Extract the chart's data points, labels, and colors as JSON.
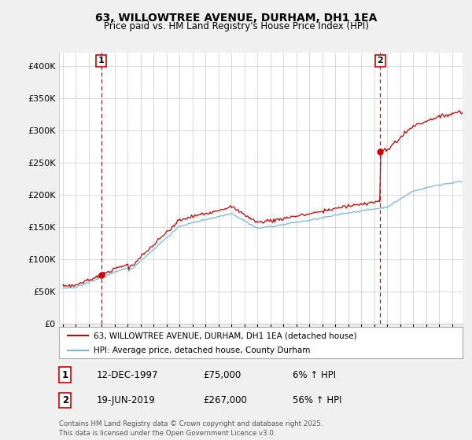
{
  "title": "63, WILLOWTREE AVENUE, DURHAM, DH1 1EA",
  "subtitle": "Price paid vs. HM Land Registry's House Price Index (HPI)",
  "sale1_price": 75000,
  "sale1_label": "1",
  "sale1_pct": "6% ↑ HPI",
  "sale1_date_str": "12-DEC-1997",
  "sale1_t": 1997.958,
  "sale2_price": 267000,
  "sale2_label": "2",
  "sale2_pct": "56% ↑ HPI",
  "sale2_date_str": "19-JUN-2019",
  "sale2_t": 2019.458,
  "legend_line1": "63, WILLOWTREE AVENUE, DURHAM, DH1 1EA (detached house)",
  "legend_line2": "HPI: Average price, detached house, County Durham",
  "footnote": "Contains HM Land Registry data © Crown copyright and database right 2025.\nThis data is licensed under the Open Government Licence v3.0.",
  "hpi_color": "#7ab8d9",
  "sale_color": "#cc0000",
  "vline_color": "#cc0000",
  "ylim": [
    0,
    420000
  ],
  "yticks": [
    0,
    50000,
    100000,
    150000,
    200000,
    250000,
    300000,
    350000,
    400000
  ],
  "xstart": 1994.7,
  "xend": 2025.8,
  "bg_color": "#f0f0f0",
  "plot_bg": "#ffffff"
}
